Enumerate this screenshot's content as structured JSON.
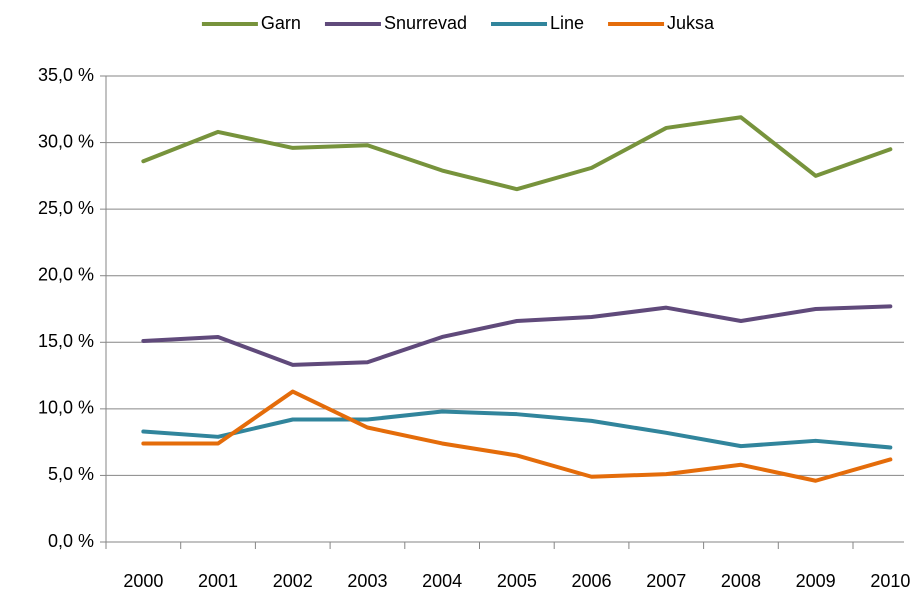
{
  "chart_data": {
    "type": "line",
    "categories": [
      "2000",
      "2001",
      "2002",
      "2003",
      "2004",
      "2005",
      "2006",
      "2007",
      "2008",
      "2009",
      "2010"
    ],
    "series": [
      {
        "name": "Garn",
        "color": "#77933c",
        "values": [
          28.6,
          30.8,
          29.6,
          29.8,
          27.9,
          26.5,
          28.1,
          31.1,
          31.9,
          27.5,
          29.5
        ]
      },
      {
        "name": "Snurrevad",
        "color": "#604a7b",
        "values": [
          15.1,
          15.4,
          13.3,
          13.5,
          15.4,
          16.6,
          16.9,
          17.6,
          16.6,
          17.5,
          17.7
        ]
      },
      {
        "name": "Line",
        "color": "#31859c",
        "values": [
          8.3,
          7.9,
          9.2,
          9.2,
          9.8,
          9.6,
          9.1,
          8.2,
          7.2,
          7.6,
          7.1
        ]
      },
      {
        "name": "Juksa",
        "color": "#e46c0a",
        "values": [
          7.4,
          7.4,
          11.3,
          8.6,
          7.4,
          6.5,
          4.9,
          5.1,
          5.8,
          4.6,
          6.2
        ]
      }
    ],
    "ylim": [
      0,
      35
    ],
    "yticks": [
      {
        "value": 0,
        "label": "0,0 %"
      },
      {
        "value": 5,
        "label": "5,0 %"
      },
      {
        "value": 10,
        "label": "10,0 %"
      },
      {
        "value": 15,
        "label": "15,0 %"
      },
      {
        "value": 20,
        "label": "20,0 %"
      },
      {
        "value": 25,
        "label": "25,0 %"
      },
      {
        "value": 30,
        "label": "30,0 %"
      },
      {
        "value": 35,
        "label": "35,0 %"
      }
    ],
    "grid": true,
    "legend": "top"
  }
}
